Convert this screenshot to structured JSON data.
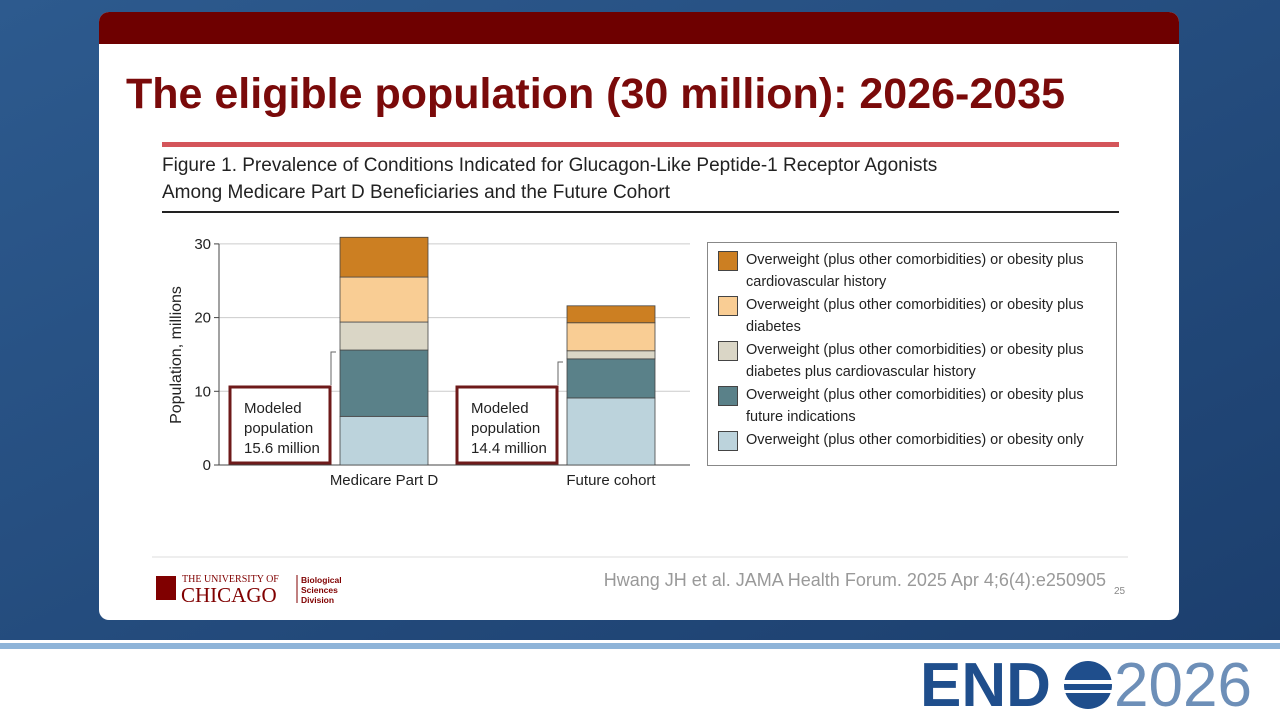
{
  "slide": {
    "title": "The eligible population (30 million): 2026-2035",
    "source": "Hwang JH et al. JAMA Health Forum. 2025 Apr 4;6(4):e250905",
    "page_number": "25",
    "logo": {
      "line1": "THE UNIVERSITY OF",
      "line2": "CHICAGO",
      "division": [
        "Biological",
        "Sciences",
        "Division"
      ]
    },
    "event": {
      "left": "END",
      "right": "2026"
    }
  },
  "chart_data": {
    "type": "stacked-bar",
    "title": [
      "Figure 1. Prevalence of Conditions Indicated for Glucagon-Like Peptide-1 Receptor Agonists",
      "Among Medicare Part D Beneficiaries and the Future Cohort"
    ],
    "y_label": "Population, millions",
    "categories": [
      "Medicare Part D",
      "Future cohort"
    ],
    "series": [
      {
        "name": "Overweight (plus other comorbidities) or obesity plus cardiovascular history",
        "color": "#cc7f22",
        "values": [
          5.4,
          2.3
        ]
      },
      {
        "name": "Overweight (plus other comorbidities) or obesity plus diabetes",
        "color": "#f9cd94",
        "values": [
          6.1,
          3.8
        ]
      },
      {
        "name": "Overweight (plus other comorbidities) or obesity plus diabetes plus cardiovascular history",
        "color": "#dad6c6",
        "values": [
          3.8,
          1.1
        ]
      },
      {
        "name": "Overweight (plus other comorbidities) or obesity plus future indications",
        "color": "#5a8189",
        "values": [
          9.0,
          5.3
        ]
      },
      {
        "name": "Overweight (plus other comorbidities) or obesity only",
        "color": "#bcd3dc",
        "values": [
          6.6,
          9.1
        ]
      }
    ],
    "ylim": [
      0,
      32
    ],
    "yticks": [
      0,
      10,
      20,
      30
    ],
    "grid": true,
    "annotations": [
      {
        "category": 0,
        "lines": [
          "Modeled",
          "population",
          "15.6 million"
        ]
      },
      {
        "category": 1,
        "lines": [
          "Modeled",
          "population",
          "14.4 million"
        ]
      }
    ]
  }
}
